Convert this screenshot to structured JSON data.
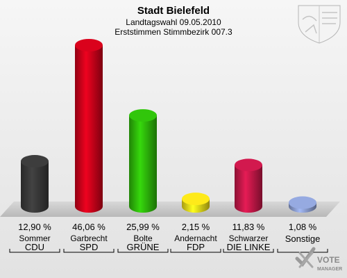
{
  "header": {
    "title": "Stadt Bielefeld",
    "subtitle": "Landtagswahl 09.05.2010",
    "subtitle2": "Erststimmen Stimmbezirk 007.3"
  },
  "logo": {
    "line1": "VOTE",
    "line2": "MANAGER",
    "icon": "checkmark-x-icon"
  },
  "crest": {
    "icon": "state-coat-of-arms-icon"
  },
  "chart_data": {
    "type": "bar",
    "categories": [
      "CDU",
      "SPD",
      "GRÜNE",
      "FDP",
      "DIE LINKE",
      "Sonstige"
    ],
    "candidates": [
      "Sommer",
      "Garbrecht",
      "Bolte",
      "Andernacht",
      "Schwarzer",
      ""
    ],
    "values": [
      12.9,
      46.06,
      25.99,
      2.15,
      11.83,
      1.08
    ],
    "value_labels": [
      "12,90 %",
      "46,06 %",
      "25,99 %",
      "2,15 %",
      "11,83 %",
      "1,08 %"
    ],
    "colors": [
      "#3a3a3a",
      "#d0021b",
      "#2fbd0a",
      "#f2df19",
      "#c8184a",
      "#8fa2d6"
    ],
    "ylim": [
      0,
      46.06
    ],
    "title": "Stadt Bielefeld",
    "xlabel": "",
    "ylabel": ""
  }
}
